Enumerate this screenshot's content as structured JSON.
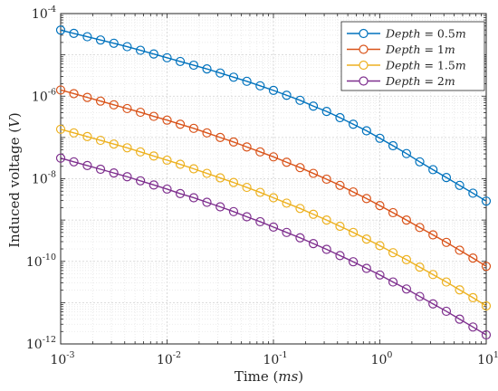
{
  "chart_data": {
    "type": "line",
    "title": "",
    "xlabel": "Time",
    "xlabel_unit": "ms",
    "ylabel": "Induced voltage",
    "ylabel_unit": "V",
    "xscale": "log",
    "yscale": "log",
    "xlim": [
      0.001,
      10
    ],
    "ylim": [
      1e-12,
      0.0001
    ],
    "grid": "on (major and minor, dotted)",
    "legend_position": "top-right",
    "x_tick_labels": [
      {
        "base": "10",
        "exp": "-3"
      },
      {
        "base": "10",
        "exp": "-2"
      },
      {
        "base": "10",
        "exp": "-1"
      },
      {
        "base": "10",
        "exp": "0"
      },
      {
        "base": "10",
        "exp": "1"
      }
    ],
    "y_tick_labels": [
      {
        "base": "10",
        "exp": "-12"
      },
      {
        "base": "10",
        "exp": "-10"
      },
      {
        "base": "10",
        "exp": "-8"
      },
      {
        "base": "10",
        "exp": "-6"
      },
      {
        "base": "10",
        "exp": "-4"
      }
    ],
    "marker": "circle (open)",
    "x": [
      0.001,
      0.00133,
      0.00178,
      0.00237,
      0.00316,
      0.00422,
      0.00562,
      0.0075,
      0.01,
      0.0133,
      0.0178,
      0.0237,
      0.0316,
      0.0422,
      0.0562,
      0.075,
      0.1,
      0.133,
      0.178,
      0.237,
      0.316,
      0.422,
      0.562,
      0.75,
      1,
      1.33,
      1.78,
      2.37,
      3.16,
      4.22,
      5.62,
      7.5,
      10
    ],
    "series": [
      {
        "name": "Depth = 0.5m",
        "name_parts": {
          "var": "Depth",
          "op": " = ",
          "value": "0.5",
          "unit": "m"
        },
        "color": "#0072BD",
        "values": [
          3.98e-05,
          3.31e-05,
          2.75e-05,
          2.29e-05,
          1.91e-05,
          1.58e-05,
          1.29e-05,
          1.05e-05,
          8.51e-06,
          6.92e-06,
          5.62e-06,
          4.57e-06,
          3.63e-06,
          2.88e-06,
          2.29e-06,
          1.78e-06,
          1.38e-06,
          1.05e-06,
          7.94e-07,
          5.75e-07,
          4.27e-07,
          3.02e-07,
          2.09e-07,
          1.45e-07,
          9.55e-08,
          6.31e-08,
          4.07e-08,
          2.57e-08,
          1.66e-08,
          1.07e-08,
          6.92e-09,
          4.47e-09,
          2.88e-09
        ]
      },
      {
        "name": "Depth = 1m",
        "name_parts": {
          "var": "Depth",
          "op": " = ",
          "value": "1",
          "unit": "m"
        },
        "color": "#D95319",
        "values": [
          1.41e-06,
          1.15e-06,
          9.33e-07,
          7.59e-07,
          6.17e-07,
          5.01e-07,
          4.07e-07,
          3.24e-07,
          2.63e-07,
          2.09e-07,
          1.66e-07,
          1.29e-07,
          1e-07,
          7.76e-08,
          5.89e-08,
          4.47e-08,
          3.39e-08,
          2.51e-08,
          1.86e-08,
          1.35e-08,
          9.77e-09,
          6.92e-09,
          4.79e-09,
          3.31e-09,
          2.24e-09,
          1.51e-09,
          1e-09,
          6.61e-10,
          4.37e-10,
          2.88e-10,
          1.86e-10,
          1.2e-10,
          7.59e-11
        ]
      },
      {
        "name": "Depth = 1.5m",
        "name_parts": {
          "var": "Depth",
          "op": " = ",
          "value": "1.5",
          "unit": "m"
        },
        "color": "#EDB120",
        "values": [
          1.58e-07,
          1.29e-07,
          1.05e-07,
          8.51e-08,
          6.92e-08,
          5.62e-08,
          4.47e-08,
          3.55e-08,
          2.82e-08,
          2.24e-08,
          1.74e-08,
          1.35e-08,
          1.05e-08,
          8.13e-09,
          6.17e-09,
          4.68e-09,
          3.47e-09,
          2.57e-09,
          1.91e-09,
          1.38e-09,
          1e-09,
          7.08e-10,
          5.01e-10,
          3.47e-10,
          2.4e-10,
          1.62e-10,
          1.1e-10,
          7.24e-11,
          4.79e-11,
          3.16e-11,
          2.04e-11,
          1.32e-11,
          8.32e-12
        ]
      },
      {
        "name": "Depth = 2m",
        "name_parts": {
          "var": "Depth",
          "op": " = ",
          "value": "2",
          "unit": "m"
        },
        "color": "#7E2F8E",
        "values": [
          3.16e-08,
          2.57e-08,
          2.09e-08,
          1.7e-08,
          1.38e-08,
          1.12e-08,
          8.91e-09,
          7.08e-09,
          5.62e-09,
          4.37e-09,
          3.47e-09,
          2.69e-09,
          2.09e-09,
          1.6e-09,
          1.2e-09,
          9.12e-10,
          6.76e-10,
          5.01e-10,
          3.72e-10,
          2.69e-10,
          1.95e-10,
          1.38e-10,
          9.77e-11,
          6.76e-11,
          4.68e-11,
          3.16e-11,
          2.14e-11,
          1.41e-11,
          9.33e-12,
          6.17e-12,
          3.98e-12,
          2.57e-12,
          1.66e-12
        ]
      }
    ]
  }
}
